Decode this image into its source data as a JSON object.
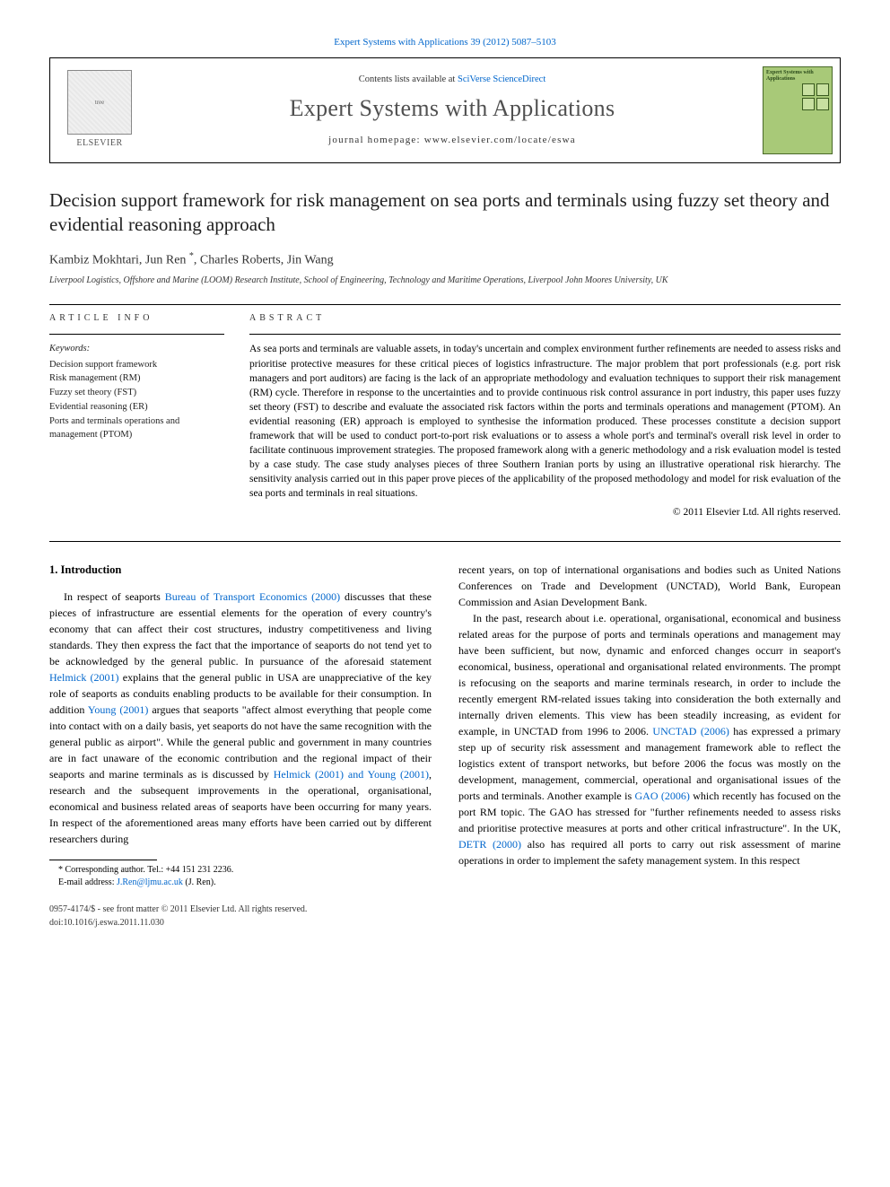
{
  "top_link": "Expert Systems with Applications 39 (2012) 5087–5103",
  "header": {
    "contents_prefix": "Contents lists available at ",
    "contents_link": "SciVerse ScienceDirect",
    "journal_name": "Expert Systems with Applications",
    "homepage": "journal homepage: www.elsevier.com/locate/eswa",
    "publisher": "ELSEVIER",
    "cover_text": "Expert Systems with Applications"
  },
  "article": {
    "title": "Decision support framework for risk management on sea ports and terminals using fuzzy set theory and evidential reasoning approach",
    "authors": "Kambiz Mokhtari, Jun Ren ",
    "authors_rest": ", Charles Roberts, Jin Wang",
    "corresponding_mark": "*",
    "affiliation": "Liverpool Logistics, Offshore and Marine (LOOM) Research Institute, School of Engineering, Technology and Maritime Operations, Liverpool John Moores University, UK"
  },
  "info": {
    "header": "ARTICLE INFO",
    "keywords_label": "Keywords:",
    "keywords": [
      "Decision support framework",
      "Risk management (RM)",
      "Fuzzy set theory (FST)",
      "Evidential reasoning (ER)",
      "Ports and terminals operations and management (PTOM)"
    ]
  },
  "abstract": {
    "header": "ABSTRACT",
    "text": "As sea ports and terminals are valuable assets, in today's uncertain and complex environment further refinements are needed to assess risks and prioritise protective measures for these critical pieces of logistics infrastructure. The major problem that port professionals (e.g. port risk managers and port auditors) are facing is the lack of an appropriate methodology and evaluation techniques to support their risk management (RM) cycle. Therefore in response to the uncertainties and to provide continuous risk control assurance in port industry, this paper uses fuzzy set theory (FST) to describe and evaluate the associated risk factors within the ports and terminals operations and management (PTOM). An evidential reasoning (ER) approach is employed to synthesise the information produced. These processes constitute a decision support framework that will be used to conduct port-to-port risk evaluations or to assess a whole port's and terminal's overall risk level in order to facilitate continuous improvement strategies. The proposed framework along with a generic methodology and a risk evaluation model is tested by a case study. The case study analyses pieces of three Southern Iranian ports by using an illustrative operational risk hierarchy. The sensitivity analysis carried out in this paper prove pieces of the applicability of the proposed methodology and model for risk evaluation of the sea ports and terminals in real situations.",
    "copyright": "© 2011 Elsevier Ltd. All rights reserved."
  },
  "body": {
    "section_title": "1. Introduction",
    "left_col": {
      "p1_a": "In respect of seaports ",
      "p1_ref1": "Bureau of Transport Economics (2000)",
      "p1_b": " discusses that these pieces of infrastructure are essential elements for the operation of every country's economy that can affect their cost structures, industry competitiveness and living standards. They then express the fact that the importance of seaports do not tend yet to be acknowledged by the general public. In pursuance of the aforesaid statement ",
      "p1_ref2": "Helmick (2001)",
      "p1_c": " explains that the general public in USA are unappreciative of the key role of seaports as conduits enabling products to be available for their consumption. In addition ",
      "p1_ref3": "Young (2001)",
      "p1_d": " argues that seaports \"affect almost everything that people come into contact with on a daily basis, yet seaports do not have the same recognition with the general public as airport\". While the general public and government in many countries are in fact unaware of the economic contribution and the regional impact of their seaports and marine terminals as is discussed by ",
      "p1_ref4": "Helmick (2001) and Young (2001)",
      "p1_e": ", research and the subsequent improvements in the operational, organisational, economical and business related areas of seaports have been occurring for many years. In respect of the aforementioned areas many efforts have been carried out by different researchers during"
    },
    "right_col": {
      "p1": "recent years, on top of international organisations and bodies such as United Nations Conferences on Trade and Development (UNCTAD), World Bank, European Commission and Asian Development Bank.",
      "p2_a": "In the past, research about i.e. operational, organisational, economical and business related areas for the purpose of ports and terminals operations and management may have been sufficient, but now, dynamic and enforced changes occurr in seaport's economical, business, operational and organisational related environments. The prompt is refocusing on the seaports and marine terminals research, in order to include the recently emergent RM-related issues taking into consideration the both externally and internally driven elements. This view has been steadily increasing, as evident for example, in UNCTAD from 1996 to 2006. ",
      "p2_ref1": "UNCTAD (2006)",
      "p2_b": " has expressed a primary step up of security risk assessment and management framework able to reflect the logistics extent of transport networks, but before 2006 the focus was mostly on the development, management, commercial, operational and organisational issues of the ports and terminals. Another example is ",
      "p2_ref2": "GAO (2006)",
      "p2_c": " which recently has focused on the port RM topic. The GAO has stressed for \"further refinements needed to assess risks and prioritise protective measures at ports and other critical infrastructure\". In the UK, ",
      "p2_ref3": "DETR (2000)",
      "p2_d": " also has required all ports to carry out risk assessment of marine operations in order to implement the safety management system. In this respect"
    }
  },
  "footnote": {
    "corresponding": "* Corresponding author. Tel.: +44 151 231 2236.",
    "email_label": "E-mail address: ",
    "email": "J.Ren@ljmu.ac.uk",
    "email_suffix": " (J. Ren)."
  },
  "footer": {
    "line1": "0957-4174/$ - see front matter © 2011 Elsevier Ltd. All rights reserved.",
    "line2": "doi:10.1016/j.eswa.2011.11.030"
  },
  "colors": {
    "link": "#0066cc",
    "text": "#000000",
    "background": "#ffffff",
    "cover_bg": "#a8c978"
  }
}
